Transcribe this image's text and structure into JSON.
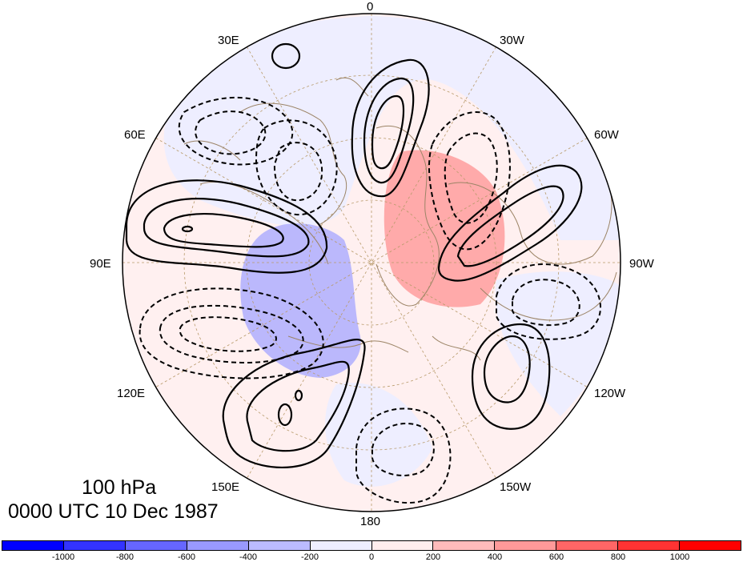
{
  "map": {
    "projection": "north polar stereographic",
    "longitude_labels": [
      {
        "id": "lon-0",
        "text": "0"
      },
      {
        "id": "lon-30w",
        "text": "30W"
      },
      {
        "id": "lon-60w",
        "text": "60W"
      },
      {
        "id": "lon-90w",
        "text": "90W"
      },
      {
        "id": "lon-120w",
        "text": "120W"
      },
      {
        "id": "lon-150w",
        "text": "150W"
      },
      {
        "id": "lon-180",
        "text": "180"
      },
      {
        "id": "lon-150e",
        "text": "150E"
      },
      {
        "id": "lon-120e",
        "text": "120E"
      },
      {
        "id": "lon-90e",
        "text": "90E"
      },
      {
        "id": "lon-60e",
        "text": "60E"
      },
      {
        "id": "lon-30e",
        "text": "30E"
      }
    ],
    "graticule_color": "#b89a6a",
    "coastline_color": "#9c8466",
    "positive_contour_style": "solid",
    "negative_contour_style": "dashed"
  },
  "captions": {
    "level": "100 hPa",
    "time": "0000 UTC 10 Dec 1987"
  },
  "colorbar": {
    "colors": [
      "#0000ff",
      "#3333ff",
      "#6666ff",
      "#9999ff",
      "#bbbbff",
      "#eeeeff",
      "#ffeeee",
      "#ffbbbb",
      "#ff9999",
      "#ff6666",
      "#ff3333",
      "#ff0000"
    ],
    "tick_labels": [
      "-1000",
      "-800",
      "-600",
      "-400",
      "-200",
      "0",
      "200",
      "400",
      "600",
      "800",
      "1000"
    ]
  }
}
